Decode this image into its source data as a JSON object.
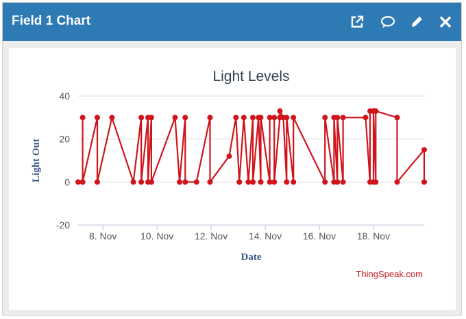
{
  "header": {
    "title": "Field 1 Chart",
    "icons": [
      "external-link-icon",
      "comment-icon",
      "pencil-icon",
      "close-icon"
    ]
  },
  "colors": {
    "header_bg": "#2d7ab5",
    "series": "#d0141b",
    "axis_title": "#3c5a8a",
    "grid": "#d8d8d8",
    "credit": "#c8141b"
  },
  "credit": "ThingSpeak.com",
  "chart_data": {
    "type": "line",
    "title": "Light Levels",
    "xlabel": "Date",
    "ylabel": "Light Out",
    "x_type": "datetime",
    "xlim": [
      "2019-11-07T02:00",
      "2019-11-19T21:00"
    ],
    "ylim": [
      -20,
      40
    ],
    "yticks": [
      -20,
      0,
      20,
      40
    ],
    "xticks": [
      {
        "date": "2019-11-08T00:00",
        "label": "8. Nov"
      },
      {
        "date": "2019-11-10T00:00",
        "label": "10. Nov"
      },
      {
        "date": "2019-11-12T00:00",
        "label": "12. Nov"
      },
      {
        "date": "2019-11-14T00:00",
        "label": "14. Nov"
      },
      {
        "date": "2019-11-16T00:00",
        "label": "16. Nov"
      },
      {
        "date": "2019-11-18T00:00",
        "label": "18. Nov"
      }
    ],
    "grid": true,
    "legend": false,
    "series": [
      {
        "x": [
          "2019-11-07T02:00",
          "2019-11-07T06:00",
          "2019-11-07T06:00",
          "2019-11-07T06:00",
          "2019-11-07T19:00",
          "2019-11-07T19:00",
          "2019-11-08T08:00",
          "2019-11-09T03:00",
          "2019-11-09T10:00",
          "2019-11-09T10:00",
          "2019-11-09T16:00",
          "2019-11-09T16:00",
          "2019-11-09T19:00",
          "2019-11-09T19:00",
          "2019-11-10T16:00",
          "2019-11-10T20:00",
          "2019-11-11T01:00",
          "2019-11-11T01:00",
          "2019-11-11T11:00",
          "2019-11-11T23:00",
          "2019-11-11T23:00",
          "2019-11-12T16:00",
          "2019-11-12T22:00",
          "2019-11-13T01:00",
          "2019-11-13T05:00",
          "2019-11-13T09:00",
          "2019-11-13T13:00",
          "2019-11-13T13:00",
          "2019-11-13T18:00",
          "2019-11-13T20:00",
          "2019-11-13T20:00",
          "2019-11-14T04:00",
          "2019-11-14T04:00",
          "2019-11-14T08:00",
          "2019-11-14T08:00",
          "2019-11-14T13:00",
          "2019-11-14T13:00",
          "2019-11-14T16:00",
          "2019-11-14T19:00",
          "2019-11-14T19:00",
          "2019-11-15T01:00",
          "2019-11-15T01:00",
          "2019-11-16T05:00",
          "2019-11-16T05:00",
          "2019-11-16T13:00",
          "2019-11-16T13:00",
          "2019-11-16T16:00",
          "2019-11-16T16:00",
          "2019-11-16T21:00",
          "2019-11-16T21:00",
          "2019-11-17T17:00",
          "2019-11-17T21:00",
          "2019-11-17T21:00",
          "2019-11-18T00:00",
          "2019-11-18T00:00",
          "2019-11-18T00:00",
          "2019-11-18T02:00",
          "2019-11-18T02:00",
          "2019-11-18T21:00",
          "2019-11-18T21:00",
          "2019-11-19T21:00",
          "2019-11-19T21:00"
        ],
        "y": [
          0,
          0,
          30,
          0,
          30,
          0,
          30,
          0,
          30,
          0,
          30,
          0,
          30,
          0,
          30,
          0,
          30,
          0,
          0,
          30,
          0,
          12,
          30,
          0,
          30,
          0,
          30,
          0,
          30,
          0,
          30,
          0,
          30,
          30,
          0,
          30,
          33,
          30,
          0,
          30,
          0,
          30,
          0,
          30,
          0,
          30,
          0,
          30,
          0,
          30,
          30,
          0,
          33,
          33,
          0,
          33,
          0,
          33,
          30,
          0,
          15,
          0
        ]
      }
    ]
  }
}
